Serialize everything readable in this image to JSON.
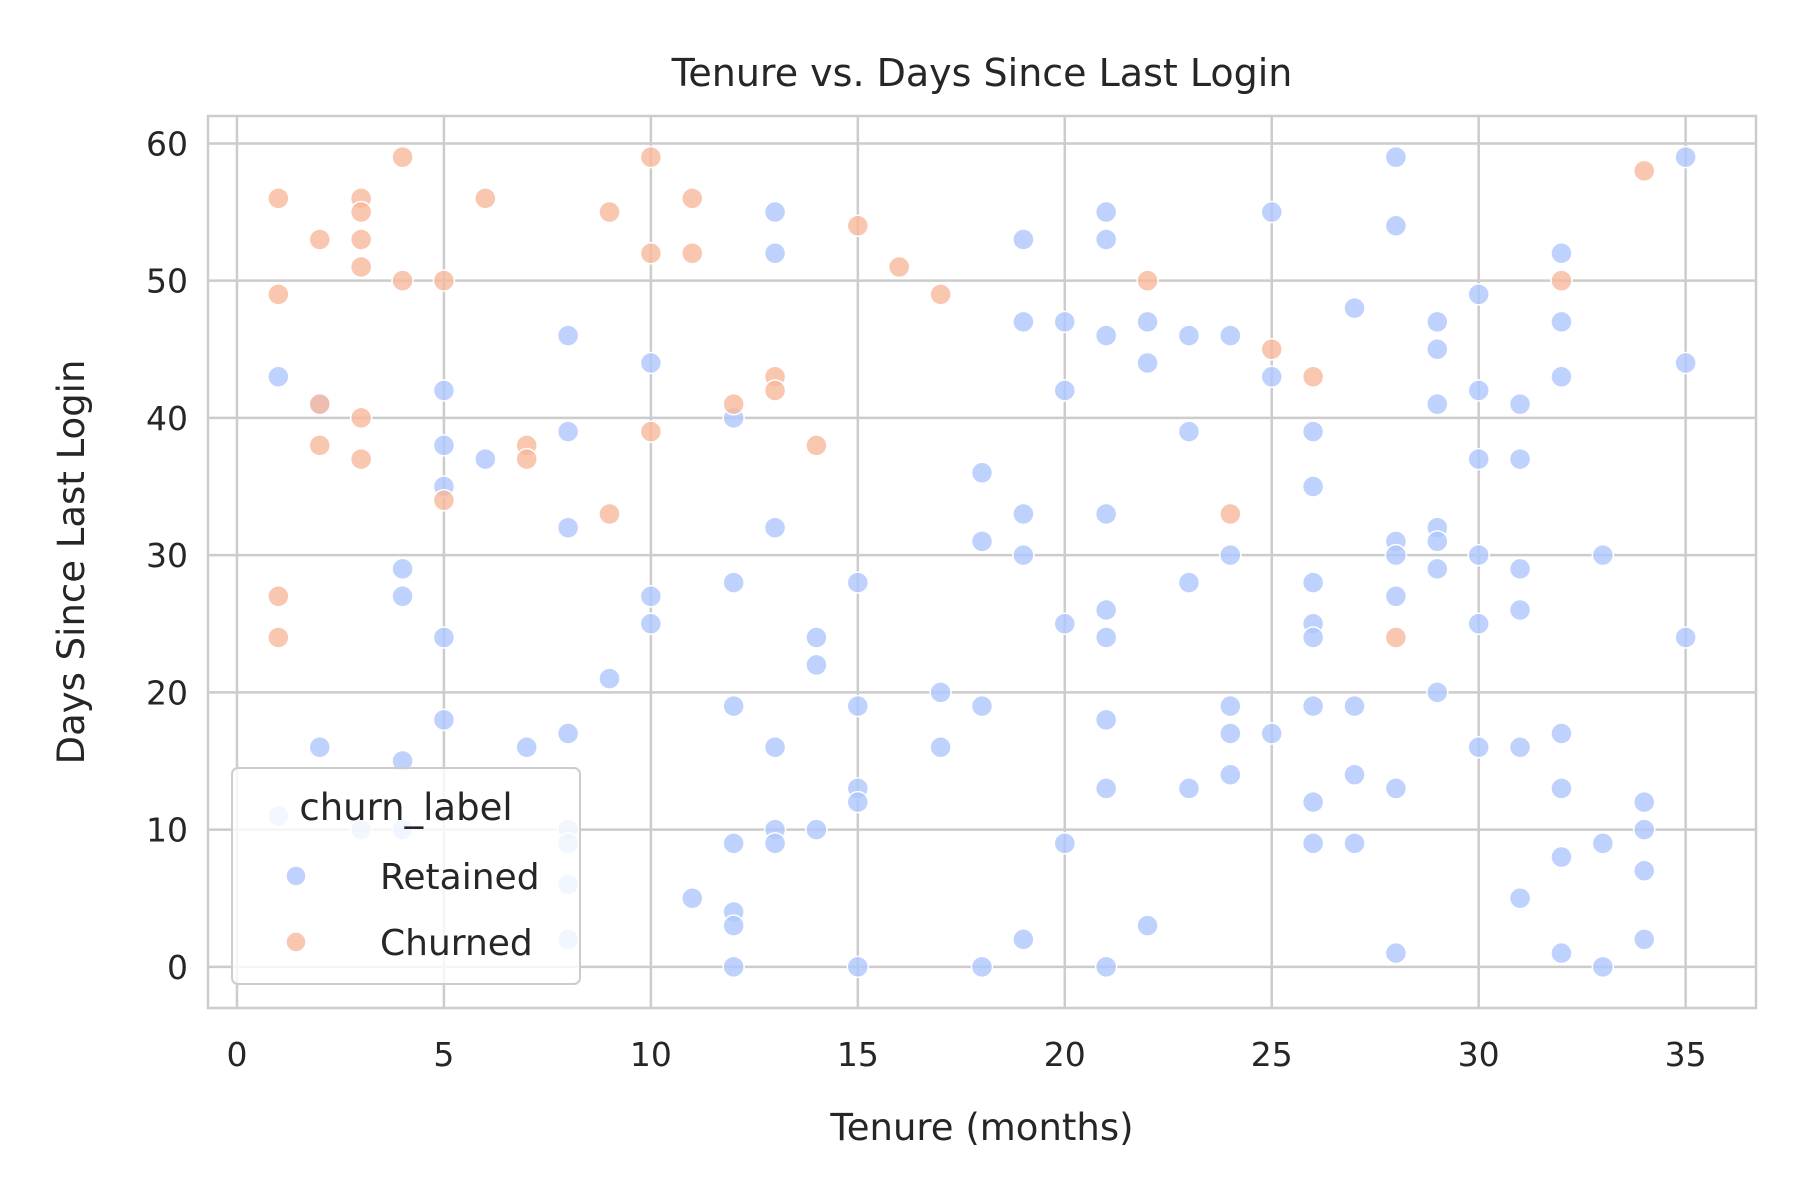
{
  "chart_data": {
    "type": "scatter",
    "title": "Tenure vs. Days Since Last Login",
    "xlabel": "Tenure (months)",
    "ylabel": "Days Since Last Login",
    "xlim": [
      -0.7,
      36.7
    ],
    "ylim": [
      -3,
      62
    ],
    "xticks": [
      0,
      5,
      10,
      15,
      20,
      25,
      30,
      35
    ],
    "yticks": [
      0,
      10,
      20,
      30,
      40,
      50,
      60
    ],
    "grid": true,
    "legend": {
      "title": "churn_label",
      "placement": "lower-left"
    },
    "series": [
      {
        "name": "Retained",
        "color": "#aec7fd",
        "points": [
          [
            1,
            43
          ],
          [
            1,
            11
          ],
          [
            2,
            41
          ],
          [
            2,
            16
          ],
          [
            3,
            10
          ],
          [
            4,
            29
          ],
          [
            4,
            27
          ],
          [
            4,
            15
          ],
          [
            4,
            10
          ],
          [
            5,
            42
          ],
          [
            5,
            38
          ],
          [
            5,
            35
          ],
          [
            5,
            24
          ],
          [
            5,
            18
          ],
          [
            6,
            37
          ],
          [
            7,
            16
          ],
          [
            8,
            46
          ],
          [
            8,
            39
          ],
          [
            8,
            32
          ],
          [
            8,
            17
          ],
          [
            8,
            10
          ],
          [
            8,
            9
          ],
          [
            8,
            6
          ],
          [
            8,
            2
          ],
          [
            9,
            21
          ],
          [
            10,
            44
          ],
          [
            10,
            27
          ],
          [
            10,
            25
          ],
          [
            11,
            5
          ],
          [
            12,
            40
          ],
          [
            12,
            28
          ],
          [
            12,
            19
          ],
          [
            12,
            9
          ],
          [
            12,
            4
          ],
          [
            12,
            3
          ],
          [
            12,
            0
          ],
          [
            13,
            55
          ],
          [
            13,
            52
          ],
          [
            13,
            32
          ],
          [
            13,
            16
          ],
          [
            13,
            10
          ],
          [
            13,
            9
          ],
          [
            14,
            24
          ],
          [
            14,
            22
          ],
          [
            14,
            10
          ],
          [
            15,
            28
          ],
          [
            15,
            19
          ],
          [
            15,
            13
          ],
          [
            15,
            12
          ],
          [
            15,
            0
          ],
          [
            17,
            20
          ],
          [
            17,
            16
          ],
          [
            18,
            36
          ],
          [
            18,
            31
          ],
          [
            18,
            19
          ],
          [
            18,
            0
          ],
          [
            19,
            53
          ],
          [
            19,
            47
          ],
          [
            19,
            33
          ],
          [
            19,
            30
          ],
          [
            19,
            2
          ],
          [
            20,
            47
          ],
          [
            20,
            42
          ],
          [
            20,
            25
          ],
          [
            20,
            9
          ],
          [
            21,
            55
          ],
          [
            21,
            53
          ],
          [
            21,
            46
          ],
          [
            21,
            33
          ],
          [
            21,
            26
          ],
          [
            21,
            24
          ],
          [
            21,
            18
          ],
          [
            21,
            13
          ],
          [
            21,
            0
          ],
          [
            22,
            47
          ],
          [
            22,
            44
          ],
          [
            22,
            3
          ],
          [
            23,
            46
          ],
          [
            23,
            39
          ],
          [
            23,
            28
          ],
          [
            23,
            13
          ],
          [
            24,
            46
          ],
          [
            24,
            30
          ],
          [
            24,
            19
          ],
          [
            24,
            17
          ],
          [
            24,
            14
          ],
          [
            25,
            55
          ],
          [
            25,
            43
          ],
          [
            25,
            17
          ],
          [
            26,
            39
          ],
          [
            26,
            35
          ],
          [
            26,
            28
          ],
          [
            26,
            25
          ],
          [
            26,
            24
          ],
          [
            26,
            19
          ],
          [
            26,
            12
          ],
          [
            26,
            9
          ],
          [
            27,
            48
          ],
          [
            27,
            19
          ],
          [
            27,
            14
          ],
          [
            27,
            9
          ],
          [
            28,
            59
          ],
          [
            28,
            54
          ],
          [
            28,
            31
          ],
          [
            28,
            30
          ],
          [
            28,
            27
          ],
          [
            28,
            13
          ],
          [
            28,
            1
          ],
          [
            29,
            47
          ],
          [
            29,
            45
          ],
          [
            29,
            41
          ],
          [
            29,
            32
          ],
          [
            29,
            31
          ],
          [
            29,
            29
          ],
          [
            29,
            20
          ],
          [
            30,
            49
          ],
          [
            30,
            42
          ],
          [
            30,
            37
          ],
          [
            30,
            30
          ],
          [
            30,
            25
          ],
          [
            30,
            16
          ],
          [
            31,
            41
          ],
          [
            31,
            37
          ],
          [
            31,
            29
          ],
          [
            31,
            26
          ],
          [
            31,
            16
          ],
          [
            31,
            5
          ],
          [
            32,
            52
          ],
          [
            32,
            47
          ],
          [
            32,
            43
          ],
          [
            32,
            17
          ],
          [
            32,
            13
          ],
          [
            32,
            8
          ],
          [
            32,
            1
          ],
          [
            33,
            30
          ],
          [
            33,
            9
          ],
          [
            33,
            0
          ],
          [
            34,
            12
          ],
          [
            34,
            10
          ],
          [
            34,
            7
          ],
          [
            34,
            2
          ],
          [
            35,
            59
          ],
          [
            35,
            44
          ],
          [
            35,
            24
          ]
        ]
      },
      {
        "name": "Churned",
        "color": "#f7b89c",
        "points": [
          [
            1,
            56
          ],
          [
            1,
            49
          ],
          [
            1,
            27
          ],
          [
            1,
            24
          ],
          [
            2,
            53
          ],
          [
            2,
            41
          ],
          [
            2,
            38
          ],
          [
            3,
            56
          ],
          [
            3,
            55
          ],
          [
            3,
            53
          ],
          [
            3,
            51
          ],
          [
            3,
            40
          ],
          [
            3,
            37
          ],
          [
            4,
            59
          ],
          [
            4,
            50
          ],
          [
            5,
            50
          ],
          [
            5,
            34
          ],
          [
            6,
            56
          ],
          [
            7,
            38
          ],
          [
            7,
            37
          ],
          [
            9,
            55
          ],
          [
            9,
            33
          ],
          [
            10,
            59
          ],
          [
            10,
            52
          ],
          [
            10,
            39
          ],
          [
            11,
            56
          ],
          [
            11,
            52
          ],
          [
            12,
            41
          ],
          [
            13,
            43
          ],
          [
            13,
            42
          ],
          [
            14,
            38
          ],
          [
            15,
            54
          ],
          [
            16,
            51
          ],
          [
            17,
            49
          ],
          [
            22,
            50
          ],
          [
            24,
            33
          ],
          [
            25,
            45
          ],
          [
            26,
            43
          ],
          [
            28,
            24
          ],
          [
            32,
            50
          ],
          [
            34,
            58
          ]
        ]
      }
    ]
  }
}
